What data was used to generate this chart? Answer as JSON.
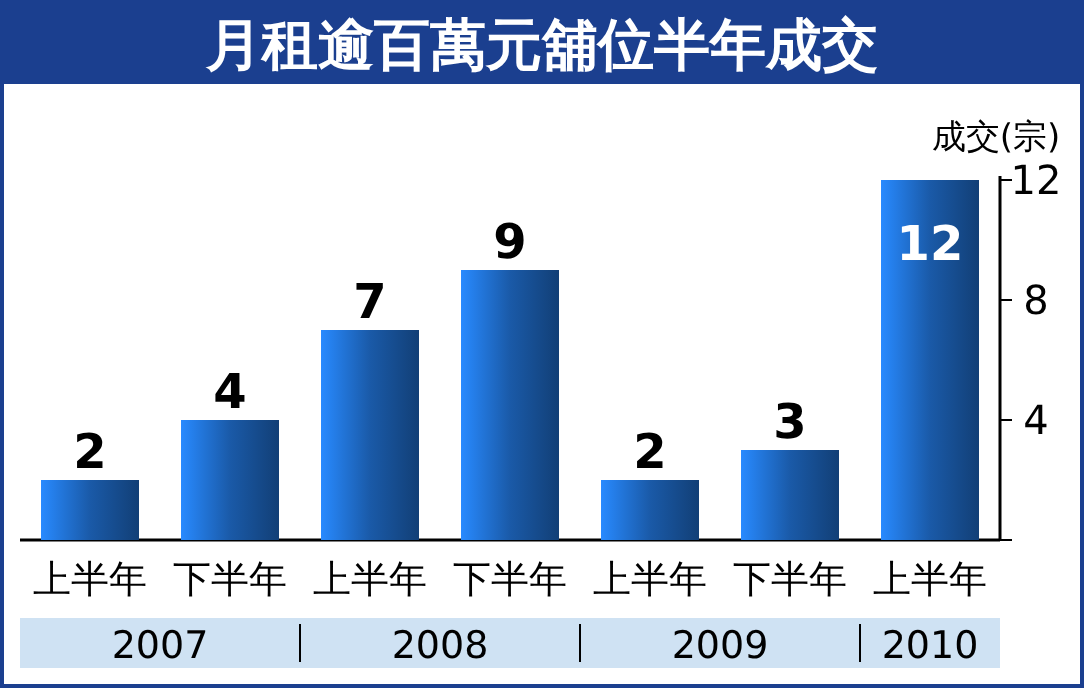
{
  "chart_data": {
    "type": "bar",
    "title": "月租逾百萬元舖位半年成交",
    "ylabel": "成交(宗)",
    "categories": [
      "上半年",
      "下半年",
      "上半年",
      "下半年",
      "上半年",
      "下半年",
      "上半年"
    ],
    "values": [
      2,
      4,
      7,
      9,
      2,
      3,
      12
    ],
    "color": "#1a5aa8",
    "ylim": [
      0,
      12
    ],
    "yticks": [
      {
        "value": 0,
        "label": null
      },
      4,
      8,
      12
    ],
    "data_labels": true,
    "annotations": [
      "2007",
      "2008",
      "2009",
      "2010"
    ]
  }
}
